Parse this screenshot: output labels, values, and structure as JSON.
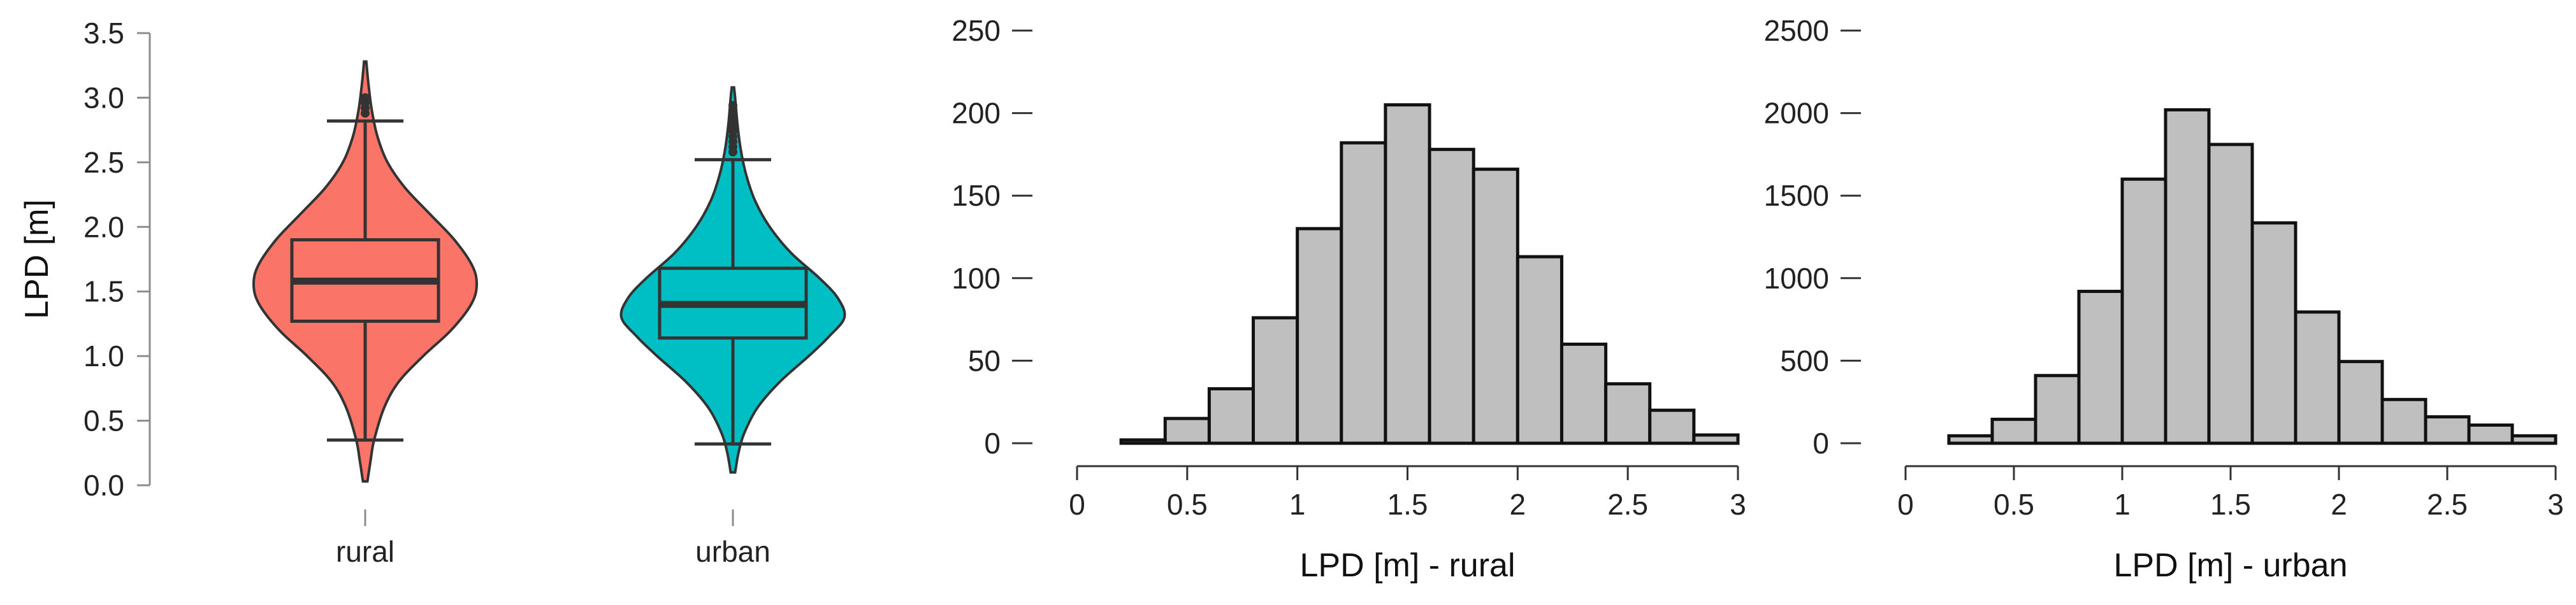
{
  "chart_data": [
    {
      "type": "violin",
      "ylabel": "LPD [m]",
      "ylim": [
        0,
        3.5
      ],
      "yticks": [
        "0.0",
        "0.5",
        "1.0",
        "1.5",
        "2.0",
        "2.5",
        "3.0",
        "3.5"
      ],
      "categories": [
        "rural",
        "urban"
      ],
      "colors": [
        "#FA7468",
        "#00BFC4"
      ],
      "series": [
        {
          "category": "rural",
          "color": "#FA7468",
          "box": {
            "q1": 1.27,
            "median": 1.58,
            "q3": 1.9,
            "whisker_low": 0.35,
            "whisker_high": 2.82
          },
          "density": [
            [
              0.03,
              0.02
            ],
            [
              0.2,
              0.05
            ],
            [
              0.35,
              0.08
            ],
            [
              0.6,
              0.17
            ],
            [
              0.8,
              0.3
            ],
            [
              1.0,
              0.52
            ],
            [
              1.2,
              0.77
            ],
            [
              1.4,
              0.95
            ],
            [
              1.55,
              1.0
            ],
            [
              1.7,
              0.96
            ],
            [
              1.9,
              0.8
            ],
            [
              2.1,
              0.58
            ],
            [
              2.3,
              0.36
            ],
            [
              2.5,
              0.2
            ],
            [
              2.7,
              0.11
            ],
            [
              2.9,
              0.06
            ],
            [
              3.1,
              0.03
            ],
            [
              3.28,
              0.01
            ]
          ]
        },
        {
          "category": "urban",
          "color": "#00BFC4",
          "box": {
            "q1": 1.14,
            "median": 1.4,
            "q3": 1.68,
            "whisker_low": 0.32,
            "whisker_high": 2.52
          },
          "density": [
            [
              0.1,
              0.02
            ],
            [
              0.25,
              0.05
            ],
            [
              0.4,
              0.1
            ],
            [
              0.6,
              0.22
            ],
            [
              0.8,
              0.42
            ],
            [
              1.0,
              0.68
            ],
            [
              1.15,
              0.86
            ],
            [
              1.3,
              1.0
            ],
            [
              1.45,
              0.94
            ],
            [
              1.6,
              0.78
            ],
            [
              1.8,
              0.52
            ],
            [
              2.0,
              0.33
            ],
            [
              2.2,
              0.2
            ],
            [
              2.4,
              0.12
            ],
            [
              2.6,
              0.07
            ],
            [
              2.8,
              0.04
            ],
            [
              3.0,
              0.02
            ],
            [
              3.08,
              0.01
            ]
          ]
        }
      ]
    },
    {
      "type": "bar",
      "xlabel": "LPD [m] - rural",
      "xlim": [
        0,
        3
      ],
      "xticks": [
        "0",
        "0.5",
        "1",
        "1.5",
        "2",
        "2.5",
        "3"
      ],
      "ylim": [
        0,
        250
      ],
      "yticks": [
        "0",
        "50",
        "100",
        "150",
        "200",
        "250"
      ],
      "bin_width": 0.2,
      "bin_starts": [
        0.2,
        0.4,
        0.6,
        0.8,
        1.0,
        1.2,
        1.4,
        1.6,
        1.8,
        2.0,
        2.2,
        2.4,
        2.6,
        2.8
      ],
      "values": [
        2,
        15,
        33,
        76,
        130,
        182,
        205,
        178,
        166,
        113,
        60,
        36,
        20,
        5
      ]
    },
    {
      "type": "bar",
      "xlabel": "LPD [m] - urban",
      "xlim": [
        0,
        3
      ],
      "xticks": [
        "0",
        "0.5",
        "1",
        "1.5",
        "2",
        "2.5",
        "3"
      ],
      "ylim": [
        0,
        2500
      ],
      "yticks": [
        "0",
        "500",
        "1000",
        "1500",
        "2000",
        "2500"
      ],
      "bin_width": 0.2,
      "bin_starts": [
        0.2,
        0.4,
        0.6,
        0.8,
        1.0,
        1.2,
        1.4,
        1.6,
        1.8,
        2.0,
        2.2,
        2.4,
        2.6,
        2.8
      ],
      "values": [
        45,
        145,
        410,
        920,
        1600,
        2020,
        1810,
        1335,
        795,
        495,
        265,
        160,
        110,
        45
      ]
    }
  ]
}
